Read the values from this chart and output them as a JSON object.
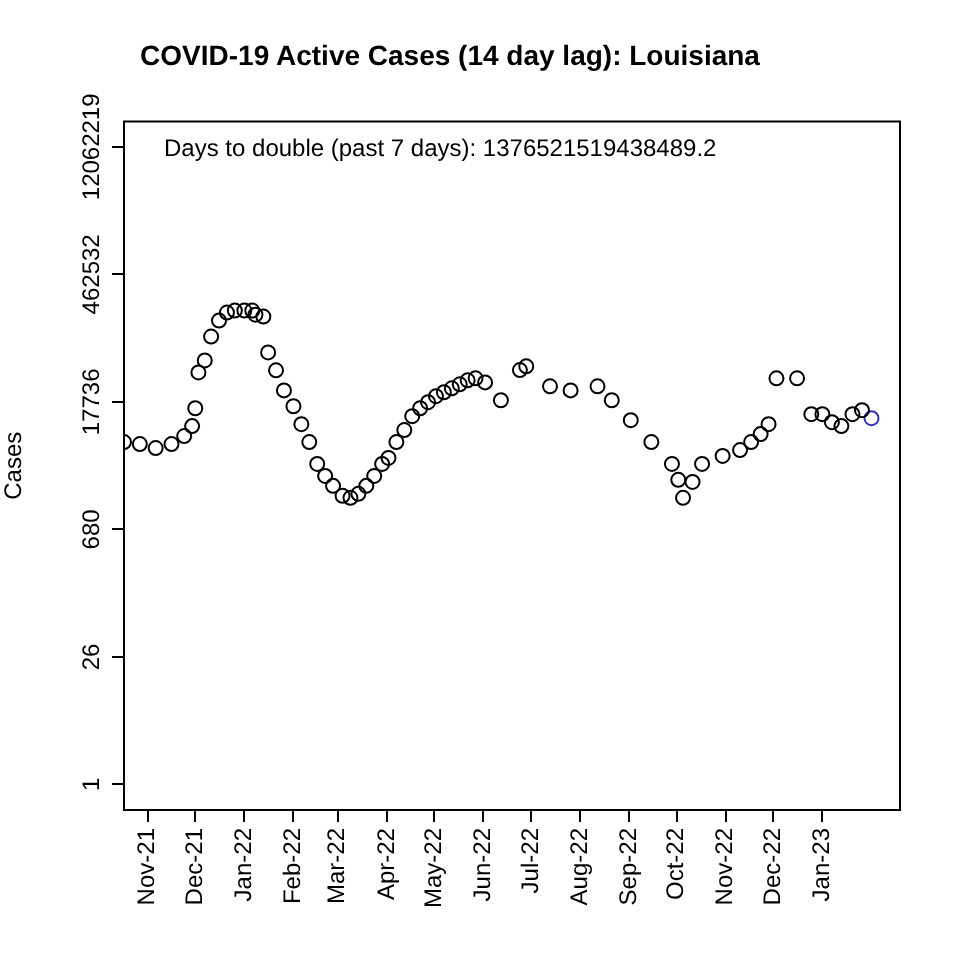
{
  "chart_data": {
    "type": "scatter",
    "title": "COVID-19 Active Cases (14 day lag): Louisiana",
    "ylabel": "Cases",
    "annotations": [
      "Days to double (past 7 days): 1376521519438489.2"
    ],
    "log": "y",
    "grid": false,
    "legend": false,
    "marker": "circle",
    "ylim": [
      0.52,
      23000000
    ],
    "yticks": [
      1,
      26,
      680,
      17736,
      462532,
      12062219
    ],
    "xlim": [
      "2021-10-17",
      "2023-02-19"
    ],
    "xticks": [
      {
        "value": "2021-11-01",
        "label": "Nov-21"
      },
      {
        "value": "2021-12-01",
        "label": "Dec-21"
      },
      {
        "value": "2022-01-01",
        "label": "Jan-22"
      },
      {
        "value": "2022-02-01",
        "label": "Feb-22"
      },
      {
        "value": "2022-03-01",
        "label": "Mar-22"
      },
      {
        "value": "2022-04-01",
        "label": "Apr-22"
      },
      {
        "value": "2022-05-01",
        "label": "May-22"
      },
      {
        "value": "2022-06-01",
        "label": "Jun-22"
      },
      {
        "value": "2022-07-01",
        "label": "Jul-22"
      },
      {
        "value": "2022-08-01",
        "label": "Aug-22"
      },
      {
        "value": "2022-09-01",
        "label": "Sep-22"
      },
      {
        "value": "2022-10-01",
        "label": "Oct-22"
      },
      {
        "value": "2022-11-01",
        "label": "Nov-22"
      },
      {
        "value": "2022-12-01",
        "label": "Dec-22"
      },
      {
        "value": "2023-01-01",
        "label": "Jan-23"
      }
    ],
    "series": [
      {
        "color": "#000000",
        "x": [
          "2021-10-17",
          "2021-10-27",
          "2021-11-06",
          "2021-11-16",
          "2021-11-24",
          "2021-11-29",
          "2021-12-01",
          "2021-12-03",
          "2021-12-07",
          "2021-12-11",
          "2021-12-16",
          "2021-12-21",
          "2021-12-26",
          "2022-01-01",
          "2022-01-06",
          "2022-01-08",
          "2022-01-13",
          "2022-01-16",
          "2022-01-21",
          "2022-01-26",
          "2022-02-01",
          "2022-02-06",
          "2022-02-11",
          "2022-02-16",
          "2022-02-21",
          "2022-02-26",
          "2022-03-04",
          "2022-03-09",
          "2022-03-14",
          "2022-03-19",
          "2022-03-24",
          "2022-03-29",
          "2022-04-02",
          "2022-04-07",
          "2022-04-12",
          "2022-04-17",
          "2022-04-22",
          "2022-04-27",
          "2022-05-02",
          "2022-05-07",
          "2022-05-12",
          "2022-05-17",
          "2022-05-22",
          "2022-05-27",
          "2022-06-02",
          "2022-06-12",
          "2022-06-24",
          "2022-06-28",
          "2022-07-13",
          "2022-07-26",
          "2022-08-12",
          "2022-08-21",
          "2022-09-02",
          "2022-09-15",
          "2022-09-28",
          "2022-10-02",
          "2022-10-05",
          "2022-10-11",
          "2022-10-17",
          "2022-10-30",
          "2022-11-10",
          "2022-11-17",
          "2022-11-23",
          "2022-11-28",
          "2022-12-03",
          "2022-12-16",
          "2022-12-25",
          "2023-01-01",
          "2023-01-07",
          "2023-01-13",
          "2023-01-20",
          "2023-01-26"
        ],
        "values": [
          6350,
          6030,
          5440,
          6030,
          7400,
          9540,
          15070,
          37700,
          51200,
          94300,
          141800,
          174000,
          183000,
          183000,
          183000,
          165000,
          157000,
          62800,
          39700,
          23800,
          15850,
          10030,
          6350,
          3630,
          2670,
          2070,
          1605,
          1525,
          1690,
          2070,
          2670,
          3630,
          4230,
          6350,
          8620,
          12300,
          15070,
          17600,
          20500,
          22700,
          25100,
          27800,
          30800,
          32400,
          29200,
          18500,
          40000,
          44000,
          26400,
          23800,
          26400,
          18500,
          11100,
          6350,
          3630,
          2415,
          1525,
          2290,
          3630,
          4450,
          5170,
          6350,
          7780,
          10030,
          32400,
          32400,
          12950,
          12950,
          10550,
          9540,
          12950,
          14330
        ]
      },
      {
        "color": "#3030c0",
        "x": [
          "2023-02-01"
        ],
        "values": [
          11700
        ]
      }
    ]
  }
}
